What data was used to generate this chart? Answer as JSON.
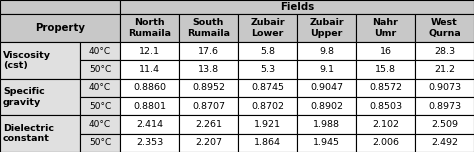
{
  "title": "Fields",
  "col_headers": [
    "North\nRumaila",
    "South\nRumaila",
    "Zubair\nLower",
    "Zubair\nUpper",
    "Nahr\nUmr",
    "West\nQurna"
  ],
  "row_groups": [
    {
      "property": "Viscosity\n(cst)",
      "rows": [
        {
          "temp": "40°C",
          "values": [
            "12.1",
            "17.6",
            "5.8",
            "9.8",
            "16",
            "28.3"
          ]
        },
        {
          "temp": "50°C",
          "values": [
            "11.4",
            "13.8",
            "5.3",
            "9.1",
            "15.8",
            "21.2"
          ]
        }
      ]
    },
    {
      "property": "Specific\ngravity",
      "rows": [
        {
          "temp": "40°C",
          "values": [
            "0.8860",
            "0.8952",
            "0.8745",
            "0.9047",
            "0.8572",
            "0.9073"
          ]
        },
        {
          "temp": "50°C",
          "values": [
            "0.8801",
            "0.8707",
            "0.8702",
            "0.8902",
            "0.8503",
            "0.8973"
          ]
        }
      ]
    },
    {
      "property": "Dielectric\nconstant",
      "rows": [
        {
          "temp": "40°C",
          "values": [
            "2.414",
            "2.261",
            "1.921",
            "1.988",
            "2.102",
            "2.509"
          ]
        },
        {
          "temp": "50°C",
          "values": [
            "2.353",
            "2.207",
            "1.864",
            "1.945",
            "2.006",
            "2.492"
          ]
        }
      ]
    }
  ],
  "header_bg": "#c8c8c8",
  "property_bg": "#e0e0e0",
  "white_bg": "#ffffff",
  "font_size": 6.8,
  "figsize": [
    4.74,
    1.52
  ],
  "dpi": 100
}
